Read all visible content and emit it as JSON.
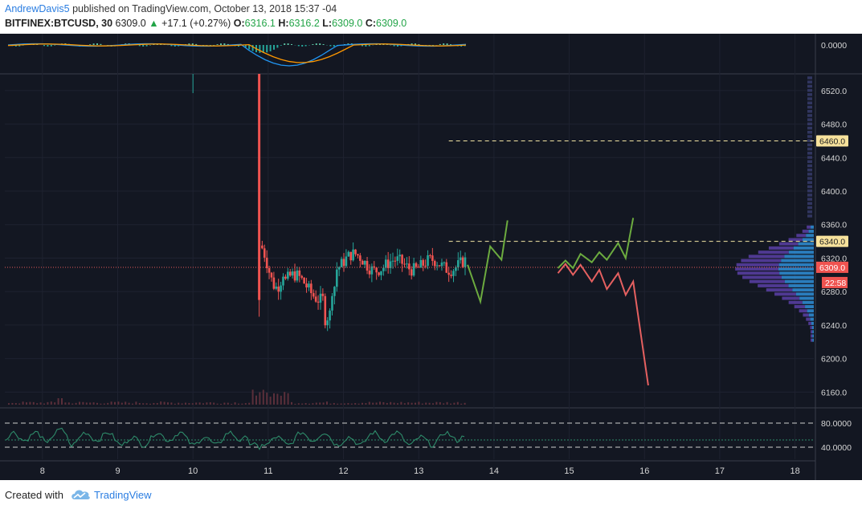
{
  "header": {
    "author": "AndrewDavis5",
    "published_text": "published on TradingView.com, October 13, 2018 15:37 -04",
    "symbol": "BITFINEX:BTCUSD, 30",
    "last_price": "6309.0",
    "change_arrow": "▲",
    "change": "+17.1 (+0.27%)",
    "o_label": "O:",
    "o_value": "6316.1",
    "h_label": "H:",
    "h_value": "6316.2",
    "l_label": "L:",
    "l_value": "6309.0",
    "c_label": "C:",
    "c_value": "6309.0"
  },
  "footer": {
    "created_with": "Created with",
    "brand": "TradingView"
  },
  "colors": {
    "background": "#131722",
    "up": "#26a69a",
    "down": "#ef5350",
    "bull_projection": "#6cab3f",
    "bear_projection": "#e56060",
    "level_line": "#f5e7a4",
    "macd_line": "#2196f3",
    "signal_line": "#ff9800",
    "rsi": "#2e8b6a"
  },
  "chart_data": {
    "type": "candlestick",
    "x_axis": {
      "ticks": [
        "8",
        "9",
        "10",
        "11",
        "12",
        "13",
        "14",
        "15",
        "16",
        "17",
        "18"
      ],
      "min": 7.5,
      "max": 18.25
    },
    "y_axis": {
      "ticks": [
        "6160.0",
        "6200.0",
        "6240.0",
        "6280.0",
        "6320.0",
        "6360.0",
        "6400.0",
        "6440.0",
        "6480.0",
        "6520.0"
      ],
      "min": 6145,
      "max": 6540
    },
    "current_price": {
      "value": 6309,
      "label": "6309.0",
      "countdown": "22:58"
    },
    "levels": [
      {
        "value": 6460,
        "label": "6460.0",
        "x_start": 13.4
      },
      {
        "value": 6340,
        "label": "6340.0",
        "x_start": 13.4
      }
    ],
    "bull_path": [
      [
        13.65,
        6312
      ],
      [
        13.82,
        6268
      ],
      [
        13.95,
        6334
      ],
      [
        14.1,
        6318
      ],
      [
        14.18,
        6365
      ]
    ],
    "bull_path_2": [
      [
        14.85,
        6308
      ],
      [
        14.95,
        6317
      ],
      [
        15.05,
        6308
      ],
      [
        15.15,
        6325
      ],
      [
        15.3,
        6315
      ],
      [
        15.4,
        6327
      ],
      [
        15.5,
        6318
      ],
      [
        15.65,
        6338
      ],
      [
        15.75,
        6320
      ],
      [
        15.85,
        6368
      ]
    ],
    "bear_path": [
      [
        14.85,
        6302
      ],
      [
        14.95,
        6313
      ],
      [
        15.05,
        6300
      ],
      [
        15.15,
        6312
      ],
      [
        15.3,
        6292
      ],
      [
        15.4,
        6306
      ],
      [
        15.5,
        6283
      ],
      [
        15.65,
        6302
      ],
      [
        15.75,
        6276
      ],
      [
        15.85,
        6292
      ],
      [
        16.05,
        6168
      ]
    ],
    "volume_profile_side": "right",
    "macd": {
      "axis_label": "0.0000"
    },
    "rsi": {
      "ticks": [
        "80.0000",
        "40.0000"
      ],
      "upper": 80,
      "lower": 40
    }
  }
}
